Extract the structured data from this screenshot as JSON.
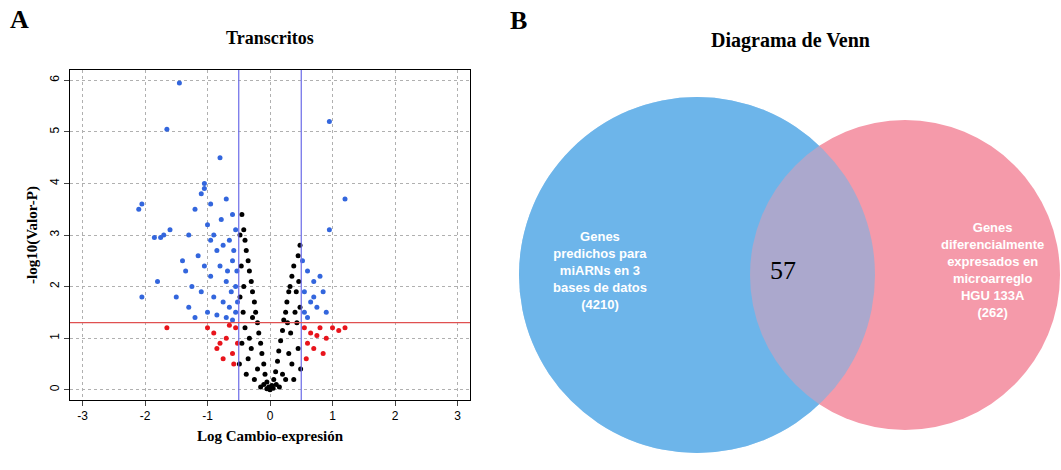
{
  "chart_data": [
    {
      "type": "scatter",
      "panel": "A",
      "title": "Transcritos",
      "x_label": "Log Cambio-expresión",
      "y_label": "-log10(Valor-P)",
      "xlim": [
        -3.2,
        3.2
      ],
      "ylim": [
        -0.2,
        6.2
      ],
      "xticks": [
        -3,
        -2,
        -1,
        0,
        1,
        2,
        3
      ],
      "yticks": [
        0,
        1,
        2,
        3,
        4,
        5,
        6
      ],
      "grid": true,
      "marker": "circle",
      "thresholds": {
        "x": [
          -0.5,
          0.5
        ],
        "y": 1.3
      },
      "series": [
        {
          "color": "#000000",
          "x": [
            0,
            -0.02,
            0.03,
            -0.05,
            0.06,
            -0.08,
            0.09,
            -0.1,
            0.12,
            -0.13,
            0.14,
            -0.15,
            0.17,
            -0.18,
            0.2,
            -0.2,
            0.22,
            -0.23,
            0.25,
            -0.25,
            0.27,
            -0.28,
            0.3,
            -0.3,
            0.32,
            -0.33,
            0.35,
            -0.35,
            0.38,
            -0.38,
            -0.4,
            -0.42,
            -0.45,
            -0.48,
            0.45,
            0.48,
            0.4,
            -0.4,
            -0.3,
            0.3,
            -0.2,
            0.2,
            -0.1,
            0.1,
            -0.45,
            0.45,
            -0.35,
            0.35,
            -0.25,
            0.25,
            -0.15,
            0.15,
            -0.48,
            0.48,
            -0.42,
            0.42,
            -0.46,
            0.46,
            -0.05,
            0.05,
            -0.33,
            0.33,
            -0.43,
            0.43,
            -0.49,
            0.49,
            -0.28,
            0.28,
            -0.38,
            0.38
          ],
          "y": [
            0,
            0.05,
            0.08,
            0.15,
            0.2,
            0.3,
            0.35,
            0.5,
            0.55,
            0.7,
            0.75,
            0.9,
            0.95,
            1.1,
            1.15,
            1.3,
            1.35,
            1.5,
            1.5,
            1.7,
            1.7,
            1.9,
            1.9,
            2.1,
            2.0,
            2.3,
            2.2,
            2.5,
            2.4,
            2.7,
            2.9,
            3.1,
            3.4,
            3.0,
            2.6,
            2.8,
            1.5,
            1.2,
            0.8,
            0.7,
            0.4,
            0.3,
            0.1,
            0.1,
            0.9,
            0.8,
            0.6,
            0.5,
            0.2,
            0.2,
            0.05,
            0.05,
            1.8,
            1.6,
            2.0,
            1.9,
            2.4,
            2.1,
            0.02,
            0.03,
            1.0,
            1.1,
            1.5,
            1.3,
            0.5,
            0.4,
            1.4,
            1.3,
            0.3,
            0.2
          ]
        },
        {
          "color": "#3366DD",
          "x": [
            -1.45,
            -1.65,
            -0.8,
            -2.05,
            -2.1,
            -1.05,
            -1.1,
            -0.95,
            -1.2,
            -0.7,
            -0.6,
            -1.6,
            -1.75,
            -1.85,
            -1.4,
            -1.35,
            -1.3,
            -1.0,
            -0.9,
            -0.85,
            -0.75,
            -0.65,
            -0.55,
            -1.15,
            -1.05,
            -0.95,
            -0.8,
            -0.7,
            -0.6,
            -0.55,
            -1.25,
            -1.1,
            -0.9,
            -0.75,
            -0.65,
            -0.55,
            -1.8,
            -2.05,
            -1.5,
            -1.0,
            -0.85,
            -0.7,
            -0.6,
            -0.52,
            -1.2,
            -0.95,
            -0.58,
            -0.68,
            -0.78,
            -1.3,
            -0.53,
            -0.62,
            -1.05,
            -1.7,
            0.95,
            1.2,
            0.95,
            0.52,
            0.6,
            0.7,
            0.8,
            0.55,
            0.65,
            0.75,
            0.85,
            0.55,
            0.6,
            0.9,
            0.7
          ],
          "y": [
            5.95,
            5.05,
            4.5,
            3.6,
            3.5,
            4.0,
            3.8,
            3.6,
            3.5,
            3.7,
            3.4,
            3.1,
            2.95,
            2.95,
            2.5,
            2.3,
            3.0,
            3.2,
            3.0,
            2.7,
            2.8,
            2.9,
            3.1,
            2.6,
            2.4,
            2.2,
            2.4,
            2.1,
            2.5,
            2.0,
            2.0,
            1.9,
            1.8,
            1.7,
            1.6,
            1.5,
            2.1,
            1.8,
            1.8,
            1.5,
            1.45,
            1.4,
            1.35,
            1.7,
            1.4,
            2.9,
            2.7,
            2.3,
            3.3,
            1.6,
            2.3,
            1.9,
            3.9,
            3.0,
            5.2,
            3.7,
            3.1,
            2.5,
            2.3,
            2.1,
            2.2,
            1.9,
            1.7,
            1.6,
            1.9,
            1.5,
            1.4,
            1.5,
            1.8
          ]
        },
        {
          "color": "#E8141C",
          "x": [
            -1.65,
            -1.0,
            -0.9,
            -0.8,
            -0.7,
            -0.6,
            -0.55,
            -0.65,
            -0.75,
            -0.52,
            -0.85,
            -0.58,
            0.55,
            0.6,
            0.65,
            0.7,
            0.8,
            0.9,
            1.0,
            1.1,
            1.2,
            0.75,
            0.58,
            0.85
          ],
          "y": [
            1.2,
            1.2,
            1.1,
            0.9,
            1.0,
            0.7,
            1.2,
            1.25,
            0.6,
            0.9,
            0.8,
            0.5,
            1.2,
            0.9,
            1.1,
            0.8,
            1.2,
            1.0,
            1.2,
            1.15,
            1.2,
            1.05,
            0.6,
            0.7
          ]
        }
      ]
    },
    {
      "type": "venn",
      "panel": "B",
      "title": "Diagrama de Venn",
      "sets": [
        {
          "label": [
            "Genes",
            "predichos para",
            "miARNs en 3",
            "bases de datos"
          ],
          "count": 4210,
          "count_label": "(4210)",
          "color": "#6EB5EA"
        },
        {
          "label": [
            "Genes",
            "diferencialmente",
            "expresados en",
            "microarreglo",
            "HGU 133A"
          ],
          "count": 262,
          "count_label": "(262)",
          "color": "#F59AAA"
        }
      ],
      "intersection": 57
    }
  ]
}
